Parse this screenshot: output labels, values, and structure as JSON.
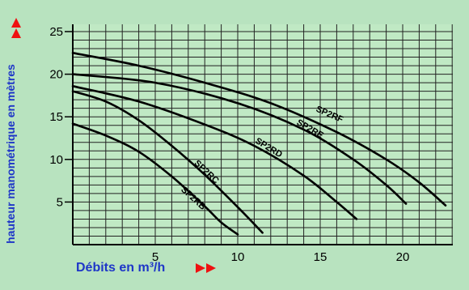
{
  "chart_data": {
    "type": "line",
    "xlabel": "Débits en m³/h",
    "ylabel": "hauteur manométrique en mètres",
    "xlim": [
      0,
      23
    ],
    "ylim": [
      0,
      26
    ],
    "x_ticks": [
      5,
      10,
      15,
      20
    ],
    "y_ticks": [
      5,
      10,
      15,
      20,
      25
    ],
    "grid": true,
    "series": [
      {
        "name": "SP2RB",
        "points": [
          [
            0,
            14.2
          ],
          [
            2,
            12.8
          ],
          [
            4,
            10.9
          ],
          [
            6,
            8.0
          ],
          [
            8,
            4.5
          ],
          [
            9,
            2.6
          ],
          [
            10,
            1.2
          ]
        ],
        "label_at": [
          7.2,
          5.2
        ]
      },
      {
        "name": "SP2RC",
        "points": [
          [
            0,
            18.0
          ],
          [
            2,
            16.8
          ],
          [
            4,
            14.6
          ],
          [
            6,
            11.6
          ],
          [
            8,
            8.2
          ],
          [
            10,
            4.4
          ],
          [
            11.5,
            1.4
          ]
        ],
        "label_at": [
          8.0,
          8.3
        ]
      },
      {
        "name": "SP2RD",
        "points": [
          [
            0,
            18.6
          ],
          [
            4,
            16.8
          ],
          [
            8,
            14.1
          ],
          [
            11,
            11.6
          ],
          [
            14,
            8.1
          ],
          [
            16,
            5.0
          ],
          [
            17.2,
            3.0
          ]
        ],
        "label_at": [
          11.8,
          11.1
        ]
      },
      {
        "name": "SP2RE",
        "points": [
          [
            0,
            20.0
          ],
          [
            5,
            19.0
          ],
          [
            10,
            16.6
          ],
          [
            14,
            13.5
          ],
          [
            17,
            10.0
          ],
          [
            19,
            7.0
          ],
          [
            20.2,
            4.8
          ]
        ],
        "label_at": [
          14.3,
          13.3
        ]
      },
      {
        "name": "SP2RF",
        "points": [
          [
            0,
            22.5
          ],
          [
            4,
            21.0
          ],
          [
            8,
            19.0
          ],
          [
            12,
            16.6
          ],
          [
            16,
            13.2
          ],
          [
            19,
            10.0
          ],
          [
            21,
            7.3
          ],
          [
            22.6,
            4.6
          ]
        ],
        "label_at": [
          15.5,
          15.0
        ]
      }
    ],
    "colors": {
      "line": "#000000",
      "grid": "#222222",
      "label": "#1e36c8",
      "arrow": "#ee1111",
      "plot_bg": "#c0e9c4"
    }
  }
}
